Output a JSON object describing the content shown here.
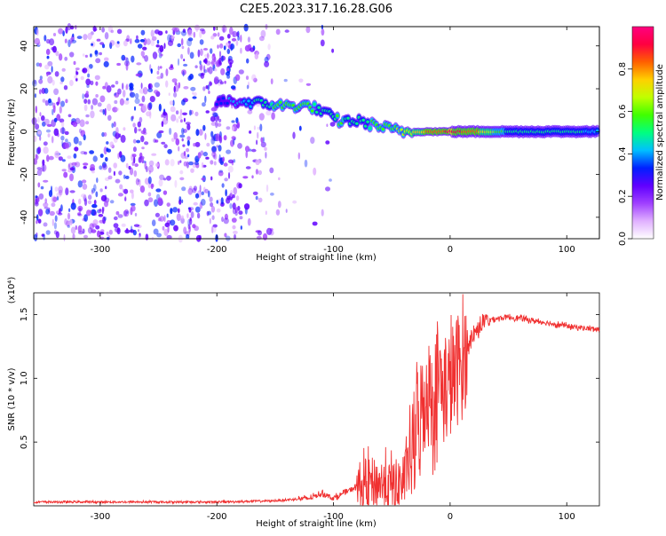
{
  "title": "C2E5.2023.317.16.28.G06",
  "chart_data": [
    {
      "type": "heatmap",
      "xlabel": "Height of straight line (km)",
      "ylabel": "Frequency (Hz)",
      "xlim": [
        -357,
        128
      ],
      "ylim": [
        -50,
        49
      ],
      "xticks": [
        -300,
        -200,
        -100,
        0,
        100
      ],
      "yticks": [
        -40,
        -20,
        0,
        20,
        40
      ],
      "colorbar": {
        "label": "Normalized spectral amplitude",
        "ticks": [
          0.0,
          0.2,
          0.4,
          0.6,
          0.8
        ],
        "range": [
          0,
          1
        ],
        "colors": [
          "#ffffff",
          "#e0b0ff",
          "#a040ff",
          "#6000ff",
          "#0020ff",
          "#00c0ff",
          "#00ff80",
          "#40ff00",
          "#c0ff00",
          "#ffd000",
          "#ff6000",
          "#ff0040",
          "#ff0080"
        ]
      },
      "signal_track": [
        {
          "x": -200,
          "f": 14,
          "a": 0.35
        },
        {
          "x": -180,
          "f": 14,
          "a": 0.4
        },
        {
          "x": -160,
          "f": 13,
          "a": 0.5
        },
        {
          "x": -140,
          "f": 12,
          "a": 0.6
        },
        {
          "x": -120,
          "f": 12,
          "a": 0.55
        },
        {
          "x": -105,
          "f": 8,
          "a": 0.5
        },
        {
          "x": -95,
          "f": 5,
          "a": 0.55
        },
        {
          "x": -80,
          "f": 5,
          "a": 0.5
        },
        {
          "x": -65,
          "f": 3,
          "a": 0.55
        },
        {
          "x": -50,
          "f": 1,
          "a": 0.6
        },
        {
          "x": -40,
          "f": 0,
          "a": 0.65
        },
        {
          "x": -20,
          "f": 0,
          "a": 0.8
        },
        {
          "x": 0,
          "f": 0,
          "a": 0.9
        },
        {
          "x": 20,
          "f": 0,
          "a": 0.85
        },
        {
          "x": 50,
          "f": 0,
          "a": 0.5
        },
        {
          "x": 128,
          "f": 0,
          "a": 0.45
        }
      ]
    },
    {
      "type": "line",
      "xlabel": "Height of straight line (km)",
      "ylabel": "SNR (10 * v/v)",
      "scale_label": "(x10⁴)",
      "xlim": [
        -357,
        128
      ],
      "ylim": [
        0,
        1.67
      ],
      "xticks": [
        -300,
        -200,
        -100,
        0,
        100
      ],
      "yticks": [
        0.5,
        1.0,
        1.5
      ],
      "series": [
        {
          "color": "#f03030",
          "x": [
            -357,
            -300,
            -250,
            -200,
            -150,
            -120,
            -110,
            -100,
            -80,
            -70,
            -60,
            -50,
            -40,
            -30,
            -25,
            -20,
            -15,
            -10,
            -5,
            0,
            5,
            10,
            15,
            20,
            25,
            30,
            40,
            50,
            60,
            80,
            100,
            128
          ],
          "y": [
            0.03,
            0.03,
            0.03,
            0.03,
            0.04,
            0.06,
            0.1,
            0.06,
            0.15,
            0.18,
            0.18,
            0.15,
            0.2,
            0.5,
            0.75,
            0.9,
            0.85,
            1.0,
            0.9,
            0.95,
            1.05,
            1.1,
            1.25,
            1.35,
            1.4,
            1.45,
            1.47,
            1.48,
            1.47,
            1.44,
            1.41,
            1.38
          ]
        }
      ]
    }
  ]
}
